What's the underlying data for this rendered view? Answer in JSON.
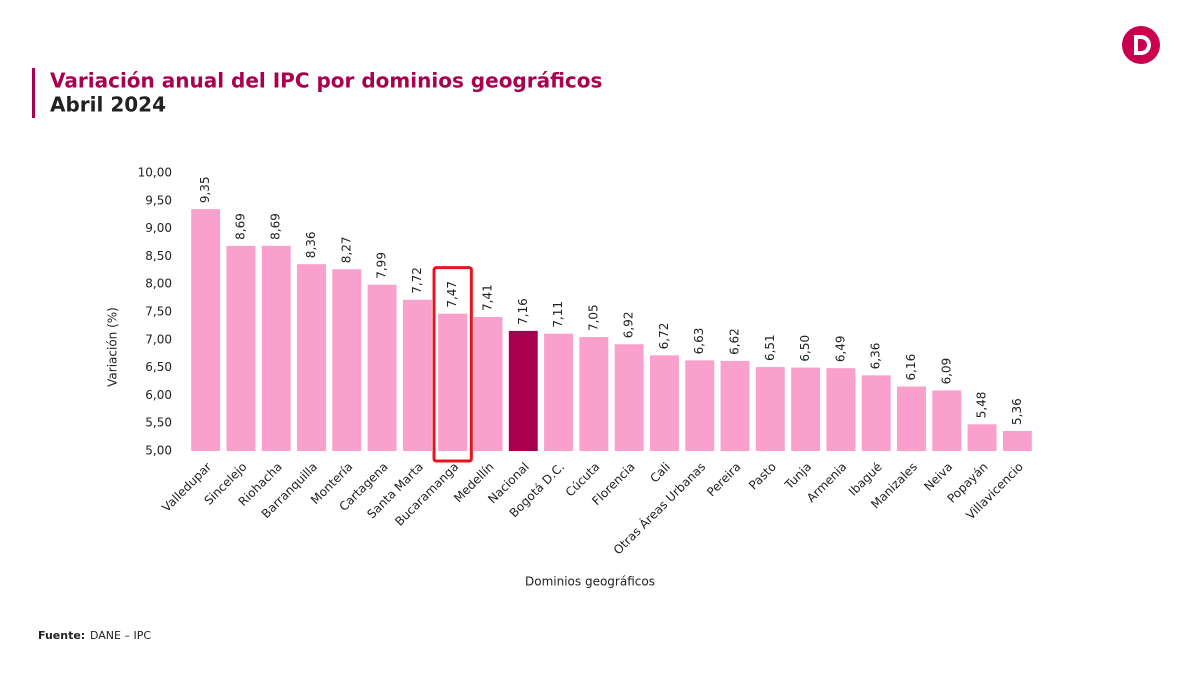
{
  "chart_data": {
    "type": "bar",
    "title": "Variación anual del IPC por dominios geográficos",
    "subtitle": "Abril 2024",
    "y_label": "Variación (%)",
    "x_label": "Dominios geográficos",
    "source_label": "Fuente:",
    "source": "DANE – IPC",
    "categories": [
      "Valledupar",
      "Sincelejo",
      "Riohacha",
      "Barranquilla",
      "Montería",
      "Cartagena",
      "Santa Marta",
      "Bucaramanga",
      "Medellín",
      "Nacional",
      "Bogotá D.C.",
      "Cúcuta",
      "Florencia",
      "Cali",
      "Otras Áreas Urbanas",
      "Pereira",
      "Pasto",
      "Tunja",
      "Armenia",
      "Ibagué",
      "Manizales",
      "Neiva",
      "Popayán",
      "Villavicencio"
    ],
    "values": [
      9.35,
      8.69,
      8.69,
      8.36,
      8.27,
      7.99,
      7.72,
      7.47,
      7.41,
      7.16,
      7.11,
      7.05,
      6.92,
      6.72,
      6.63,
      6.62,
      6.51,
      6.5,
      6.49,
      6.36,
      6.16,
      6.09,
      5.48,
      5.36
    ],
    "value_labels": [
      "9,35",
      "8,69",
      "8,69",
      "8,36",
      "8,27",
      "7,99",
      "7,72",
      "7,47",
      "7,41",
      "7,16",
      "7,11",
      "7,05",
      "6,92",
      "6,72",
      "6,63",
      "6,62",
      "6,51",
      "6,50",
      "6,49",
      "6,36",
      "6,16",
      "6,09",
      "5,48",
      "5,36"
    ],
    "colors": [
      "#f9a0cc",
      "#f9a0cc",
      "#f9a0cc",
      "#f9a0cc",
      "#f9a0cc",
      "#f9a0cc",
      "#f9a0cc",
      "#f9a0cc",
      "#f9a0cc",
      "#a8004f",
      "#f9a0cc",
      "#f9a0cc",
      "#f9a0cc",
      "#f9a0cc",
      "#f9a0cc",
      "#f9a0cc",
      "#f9a0cc",
      "#f9a0cc",
      "#f9a0cc",
      "#f9a0cc",
      "#f9a0cc",
      "#f9a0cc",
      "#f9a0cc",
      "#f9a0cc"
    ],
    "outlined_category": "Bucaramanga",
    "outline_color": "#e8141c",
    "ylim": [
      5,
      10
    ],
    "yticks": [
      {
        "value": 5,
        "label": "5,00"
      },
      {
        "value": 5.5,
        "label": "5,50"
      },
      {
        "value": 6,
        "label": "6,00"
      },
      {
        "value": 6.5,
        "label": "6,50"
      },
      {
        "value": 7,
        "label": "7,00"
      },
      {
        "value": 7.5,
        "label": "7,50"
      },
      {
        "value": 8,
        "label": "8,00"
      },
      {
        "value": 8.5,
        "label": "8,50"
      },
      {
        "value": 9,
        "label": "9,00"
      },
      {
        "value": 9.5,
        "label": "9,50"
      },
      {
        "value": 10,
        "label": "10,00"
      }
    ],
    "grid": false
  }
}
